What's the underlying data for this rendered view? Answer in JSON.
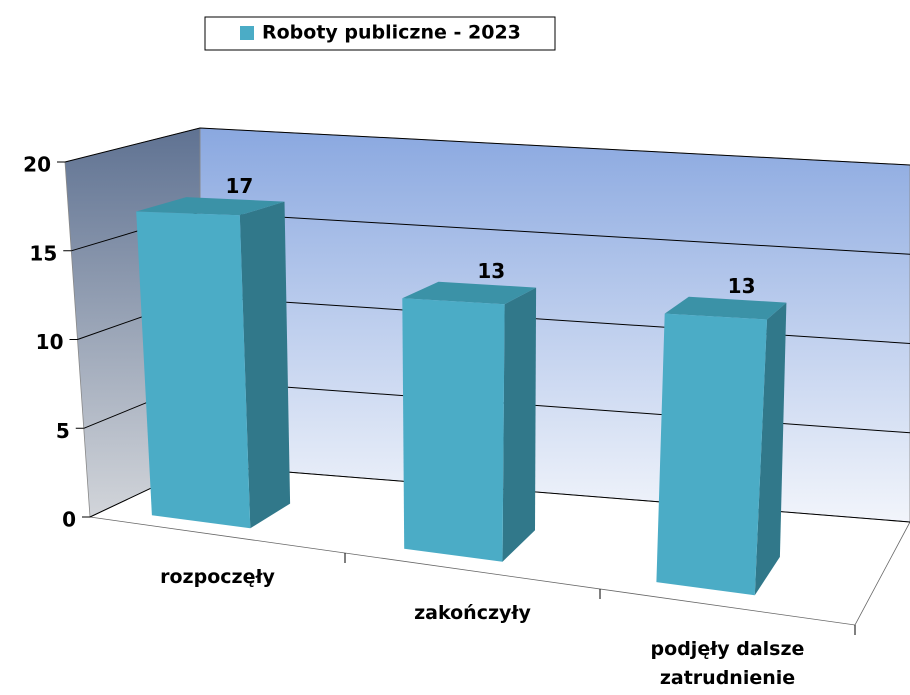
{
  "chart_data": {
    "type": "bar3d",
    "series": [
      {
        "name": "Roboty publiczne - 2023",
        "color": "#4bacc6",
        "values": [
          17,
          13,
          13
        ]
      }
    ],
    "categories": [
      "rozpoczęły",
      "zakończyły",
      "podjęły dalsze zatrudnienie"
    ],
    "ylim": [
      0,
      20
    ],
    "yticks": [
      0,
      5,
      10,
      15,
      20
    ],
    "grid": true,
    "legend": "top"
  }
}
